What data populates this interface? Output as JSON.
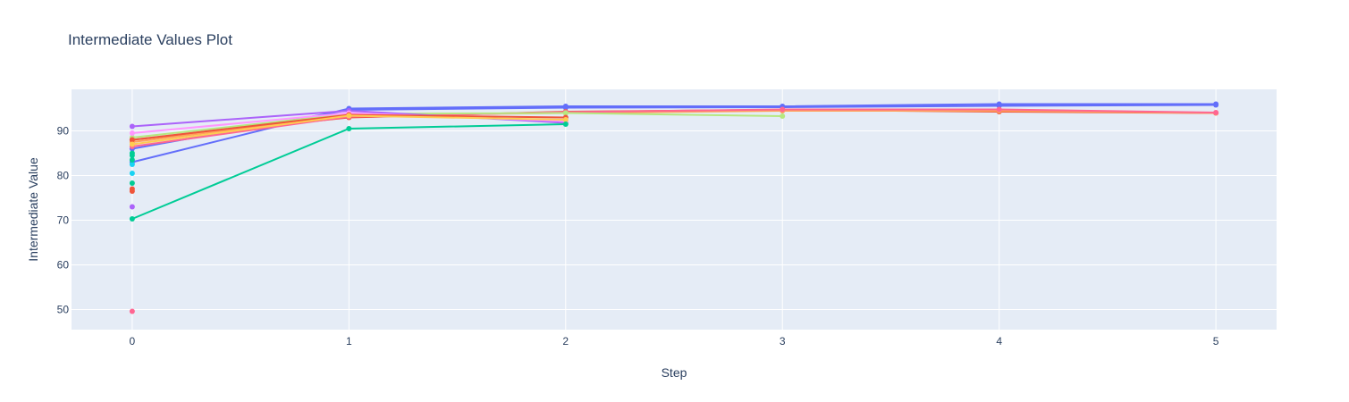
{
  "chart_data": {
    "type": "line",
    "title": "Intermediate Values Plot",
    "xlabel": "Step",
    "ylabel": "Intermediate Value",
    "x_ticks": [
      0,
      1,
      2,
      3,
      4,
      5
    ],
    "y_ticks": [
      50,
      60,
      70,
      80,
      90
    ],
    "xlim": [
      -0.28,
      5.28
    ],
    "ylim": [
      45.5,
      99.3
    ],
    "grid": true,
    "background": "#e5ecf6",
    "series": [
      {
        "x": [
          0,
          1,
          2,
          3,
          4,
          5
        ],
        "y": [
          83.0,
          95.0,
          95.5,
          95.5,
          96.0,
          96.0
        ],
        "color": "#636efa"
      },
      {
        "x": [
          0,
          1,
          2,
          3,
          4,
          5
        ],
        "y": [
          86.0,
          94.7,
          95.2,
          95.3,
          95.6,
          95.8
        ],
        "color": "#636efa"
      },
      {
        "x": [
          0,
          1,
          2,
          3,
          4,
          5
        ],
        "y": [
          88.0,
          93.0,
          94.3,
          94.7,
          94.3,
          94.0
        ],
        "color": "#ef553b"
      },
      {
        "x": [
          0,
          1,
          2,
          3,
          4,
          5
        ],
        "y": [
          87.5,
          93.5,
          94.0,
          94.5,
          94.5,
          94.0
        ],
        "color": "#ffa15a"
      },
      {
        "x": [
          0,
          1,
          2,
          3,
          4,
          5
        ],
        "y": [
          86.5,
          93.2,
          94.2,
          94.8,
          94.8,
          94.1
        ],
        "color": "#ff6692"
      },
      {
        "x": [
          0,
          1,
          2,
          3
        ],
        "y": [
          88.5,
          93.8,
          94.0,
          93.3
        ],
        "color": "#b6e880"
      },
      {
        "x": [
          0,
          1,
          2
        ],
        "y": [
          91.0,
          94.5,
          91.8
        ],
        "color": "#ab63fa"
      },
      {
        "x": [
          0,
          1,
          2
        ],
        "y": [
          89.5,
          94.0,
          92.2
        ],
        "color": "#ff97ff"
      },
      {
        "x": [
          0,
          1,
          2
        ],
        "y": [
          88.0,
          93.6,
          93.0
        ],
        "color": "#ef553b"
      },
      {
        "x": [
          0,
          1,
          2
        ],
        "y": [
          87.0,
          93.4,
          92.5
        ],
        "color": "#fecb52"
      },
      {
        "x": [
          0,
          1,
          2
        ],
        "y": [
          70.3,
          90.5,
          91.5
        ],
        "color": "#00cc96"
      },
      {
        "x": [
          0
        ],
        "y": [
          49.6
        ],
        "color": "#ff6692"
      },
      {
        "x": [
          0
        ],
        "y": [
          73.0
        ],
        "color": "#ab63fa"
      },
      {
        "x": [
          0
        ],
        "y": [
          76.5
        ],
        "color": "#ef553b"
      },
      {
        "x": [
          0
        ],
        "y": [
          77.0
        ],
        "color": "#ef553b"
      },
      {
        "x": [
          0
        ],
        "y": [
          78.3
        ],
        "color": "#00cc96"
      },
      {
        "x": [
          0
        ],
        "y": [
          80.5
        ],
        "color": "#19d3f3"
      },
      {
        "x": [
          0
        ],
        "y": [
          82.5
        ],
        "color": "#19d3f3"
      },
      {
        "x": [
          0
        ],
        "y": [
          83.5
        ],
        "color": "#00cc96"
      },
      {
        "x": [
          0
        ],
        "y": [
          84.5
        ],
        "color": "#00cc96"
      },
      {
        "x": [
          0
        ],
        "y": [
          85.0
        ],
        "color": "#00cc96"
      }
    ]
  }
}
